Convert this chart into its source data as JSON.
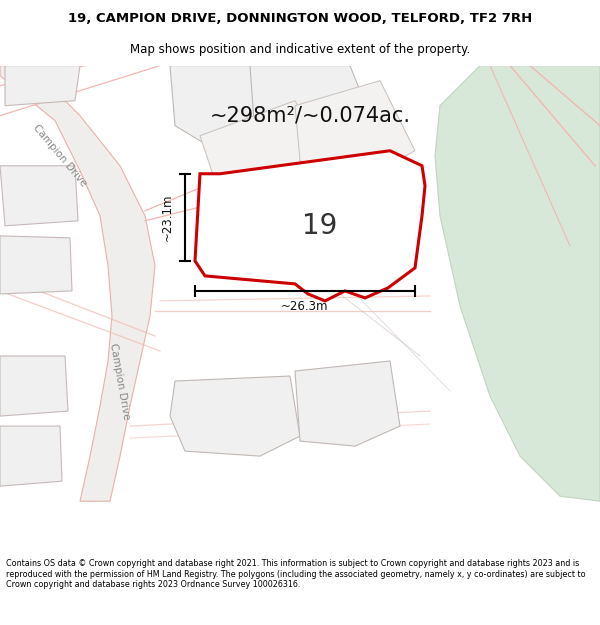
{
  "title_line1": "19, CAMPION DRIVE, DONNINGTON WOOD, TELFORD, TF2 7RH",
  "title_line2": "Map shows position and indicative extent of the property.",
  "footer_text": "Contains OS data © Crown copyright and database right 2021. This information is subject to Crown copyright and database rights 2023 and is reproduced with the permission of HM Land Registry. The polygons (including the associated geometry, namely x, y co-ordinates) are subject to Crown copyright and database rights 2023 Ordnance Survey 100026316.",
  "area_text": "~298m²/~0.074ac.",
  "label_19": "19",
  "dim_height": "~23.1m",
  "dim_width": "~26.3m",
  "campion_drive_label1": "Campion Drive",
  "campion_drive_label2": "Campion Drive",
  "map_bg": "#ffffff",
  "road_fill": "#f0eeec",
  "road_edge": "#e8b0a8",
  "plot_fill": "#ffffff",
  "plot_outline": "#cc0000",
  "green_fill": "#d8e8d8",
  "green_outline": "#c0d4c0",
  "neighbor_fill": "#f0f0f0",
  "neighbor_outline": "#c8b8b8",
  "road_line": "#f0b8b0",
  "fig_width": 6.0,
  "fig_height": 6.25
}
